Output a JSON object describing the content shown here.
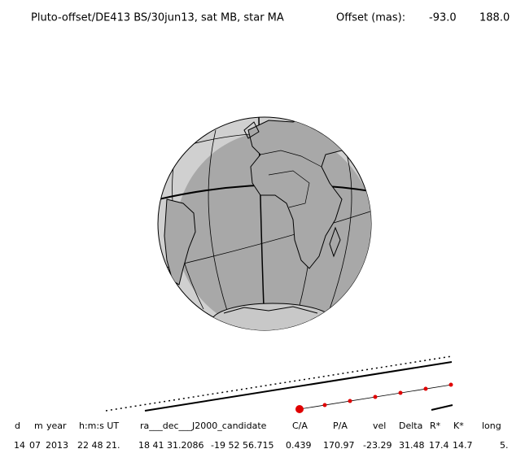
{
  "header": {
    "title": "Pluto-offset/DE413 BS/30jun13, sat MB, star MA",
    "offset_label": "Offset (mas):",
    "offset_values": [
      "-93.0",
      "188.0"
    ]
  },
  "table": {
    "columns": [
      "d",
      "m",
      "year",
      "h:m:s UT",
      "ra___dec___J2000_candidate",
      "C/A",
      "P/A",
      "vel",
      "Delta",
      "R*",
      "K*",
      "long"
    ],
    "rows": [
      [
        "14",
        "07",
        "2013",
        "22 48 21.",
        "18 41 31.2086",
        "-19 52 56.715",
        "0.439",
        "170.97",
        "-23.29",
        "31.48",
        "17.4",
        "14.7",
        "5."
      ]
    ]
  }
}
